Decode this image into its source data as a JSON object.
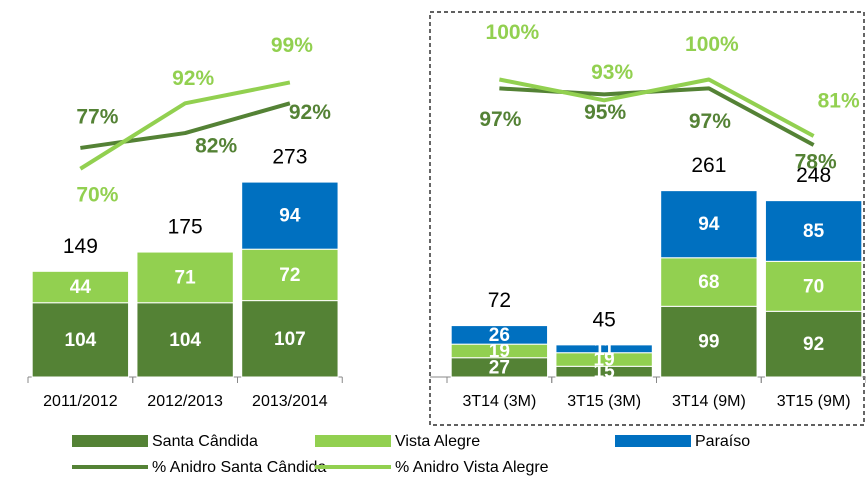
{
  "chart_data": {
    "type": "bar",
    "stacked": true,
    "categories": [
      "2011/2012",
      "2012/2013",
      "2013/2014",
      null,
      "3T14 (3M)",
      "3T15 (3M)",
      "3T14 (9M)",
      "3T15 (9M)"
    ],
    "ylim": [
      0,
      500
    ],
    "y2lim": [
      0,
      120
    ],
    "series": [
      {
        "name": "Santa Cândida",
        "type": "bar",
        "color": "#548235",
        "values": [
          104,
          104,
          107,
          null,
          27,
          15,
          99,
          92
        ]
      },
      {
        "name": "Vista Alegre",
        "type": "bar",
        "color": "#92d050",
        "values": [
          44,
          71,
          72,
          null,
          19,
          19,
          68,
          70
        ]
      },
      {
        "name": "Paraíso",
        "type": "bar",
        "color": "#0070c0",
        "values": [
          null,
          null,
          94,
          null,
          26,
          11,
          94,
          85
        ]
      },
      {
        "name": "% Anidro Santa Cândida",
        "type": "line",
        "axis": "y2",
        "color": "#548235",
        "values": [
          77,
          82,
          92,
          null,
          97,
          95,
          97,
          78
        ],
        "value_labels": [
          "77%",
          "82%",
          "92%",
          null,
          "97%",
          "95%",
          "97%",
          "78%"
        ]
      },
      {
        "name": "% Anidro Vista Alegre",
        "type": "line",
        "axis": "y2",
        "color": "#92d050",
        "values": [
          70,
          92,
          99,
          null,
          100,
          93,
          100,
          81
        ],
        "value_labels": [
          "70%",
          "92%",
          "99%",
          null,
          "100%",
          "93%",
          "100%",
          "81%"
        ]
      }
    ],
    "totals": [
      149,
      175,
      273,
      null,
      72,
      45,
      261,
      248
    ]
  }
}
